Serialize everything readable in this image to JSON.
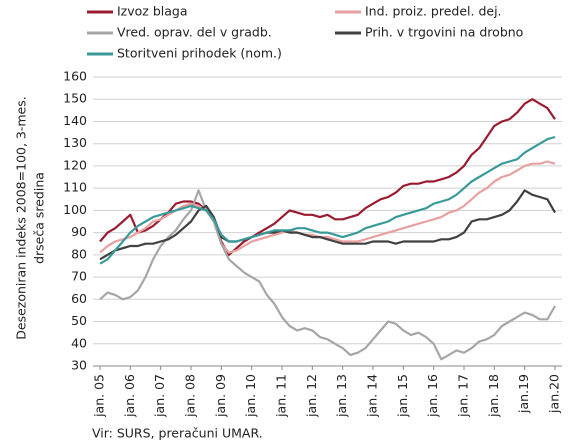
{
  "chart_data": {
    "type": "line",
    "categories": [
      "jan. 05",
      null,
      null,
      null,
      "jan. 06",
      null,
      null,
      null,
      "jan. 07",
      null,
      null,
      null,
      "jan. 08",
      null,
      null,
      null,
      "jan. 09",
      null,
      null,
      null,
      "jan. 10",
      null,
      null,
      null,
      "jan. 11",
      null,
      null,
      null,
      "jan. 12",
      null,
      null,
      null,
      "jan. 13",
      null,
      null,
      null,
      "jan. 14",
      null,
      null,
      null,
      "jan. 15",
      null,
      null,
      null,
      "jan. 16",
      null,
      null,
      null,
      "jan. 17",
      null,
      null,
      null,
      "jan. 18",
      null,
      null,
      null,
      "jan.19",
      null,
      null,
      null,
      "jan.20"
    ],
    "series": [
      {
        "name": "Izvoz blaga",
        "color": "#9b1b30",
        "values": [
          86,
          90,
          92,
          95,
          98,
          90,
          91,
          93,
          96,
          99,
          103,
          104,
          104,
          103,
          100,
          96,
          86,
          80,
          83,
          86,
          88,
          90,
          92,
          94,
          97,
          100,
          99,
          98,
          98,
          97,
          98,
          96,
          96,
          97,
          98,
          101,
          103,
          105,
          106,
          108,
          111,
          112,
          112,
          113,
          113,
          114,
          115,
          117,
          120,
          125,
          128,
          133,
          138,
          140,
          141,
          144,
          148,
          150,
          148,
          146,
          141
        ]
      },
      {
        "name": "Ind. proiz. predel. dej.",
        "color": "#e8a0a0",
        "values": [
          81,
          84,
          86,
          87,
          88,
          90,
          92,
          95,
          96,
          98,
          100,
          102,
          103,
          102,
          100,
          95,
          85,
          81,
          82,
          84,
          86,
          87,
          88,
          89,
          90,
          91,
          90,
          89,
          89,
          88,
          88,
          87,
          86,
          86,
          86,
          87,
          88,
          89,
          90,
          91,
          92,
          93,
          94,
          95,
          96,
          97,
          99,
          100,
          102,
          105,
          108,
          110,
          113,
          115,
          116,
          118,
          120,
          121,
          121,
          122,
          121
        ]
      },
      {
        "name": "Vred. oprav. del v gradb.",
        "color": "#a6a6a6",
        "values": [
          60,
          63,
          62,
          60,
          61,
          64,
          70,
          78,
          84,
          88,
          91,
          96,
          100,
          109,
          100,
          95,
          85,
          78,
          75,
          72,
          70,
          68,
          62,
          58,
          52,
          48,
          46,
          47,
          46,
          43,
          42,
          40,
          38,
          35,
          36,
          38,
          42,
          46,
          50,
          49,
          46,
          44,
          45,
          43,
          40,
          33,
          35,
          37,
          36,
          38,
          41,
          42,
          44,
          48,
          50,
          52,
          54,
          53,
          51,
          51,
          57
        ]
      },
      {
        "name": "Prih. v trgovini na drobno",
        "color": "#404040",
        "values": [
          78,
          80,
          82,
          83,
          84,
          84,
          85,
          85,
          86,
          87,
          89,
          92,
          95,
          100,
          102,
          97,
          88,
          86,
          86,
          87,
          88,
          89,
          90,
          90,
          91,
          90,
          90,
          89,
          88,
          88,
          87,
          86,
          85,
          85,
          85,
          85,
          86,
          86,
          86,
          85,
          86,
          86,
          86,
          86,
          86,
          87,
          87,
          88,
          90,
          95,
          96,
          96,
          97,
          98,
          100,
          104,
          109,
          107,
          106,
          105,
          99
        ]
      },
      {
        "name": "Storitveni prihodek (nom.)",
        "color": "#3a9a9a",
        "values": [
          76,
          78,
          82,
          86,
          90,
          93,
          95,
          97,
          98,
          99,
          100,
          101,
          102,
          101,
          100,
          96,
          89,
          86,
          86,
          87,
          88,
          89,
          90,
          91,
          91,
          91,
          92,
          92,
          91,
          90,
          90,
          89,
          88,
          89,
          90,
          92,
          93,
          94,
          95,
          97,
          98,
          99,
          100,
          101,
          103,
          104,
          105,
          107,
          110,
          113,
          115,
          117,
          119,
          121,
          122,
          123,
          126,
          128,
          130,
          132,
          133
        ]
      }
    ],
    "y_label": [
      "Desezoniran indeks 2008=100, 3-mes.",
      "drseča sredina"
    ],
    "source": "Vir: SURS, preračuni UMAR.",
    "ylim": [
      30,
      160
    ],
    "yticks": [
      30,
      40,
      50,
      60,
      70,
      80,
      90,
      100,
      110,
      120,
      130,
      140,
      150,
      160
    ],
    "grid": true
  }
}
